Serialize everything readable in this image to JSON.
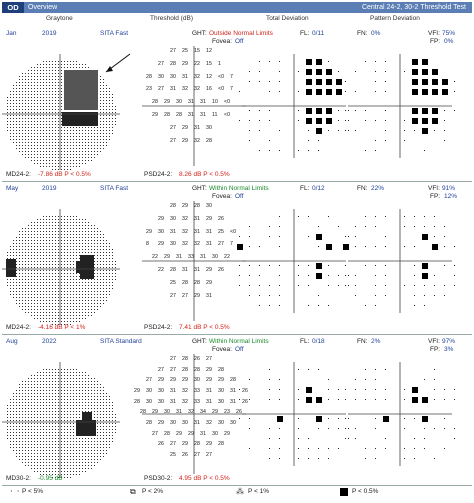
{
  "header": {
    "eye": "OD",
    "tab": "Overview",
    "test": "Central 24-2, 30-2 Threshold Test"
  },
  "columns": {
    "graytone": "Graytone",
    "threshold": "Threshold (dB)",
    "total": "Total Deviation",
    "pattern": "Pattern Deviation"
  },
  "visits": [
    {
      "month": "Jan",
      "year": "2019",
      "strategy": "SITA Fast",
      "ght_label": "GHT:",
      "ght": "Outside Normal Limits",
      "ght_status": "abnormal",
      "fovea": "Fovea:",
      "fovea_val": "Off",
      "fl_label": "FL:",
      "fl": "0/11",
      "fn_label": "FN:",
      "fn": "0%",
      "vfi_label": "VFI:",
      "vfi": "75%",
      "fp_label": "FP:",
      "fp": "0%",
      "md_label": "MD24-2:",
      "md": "-7.86 dB P < 0.5%",
      "psd_label": "PSD24-2:",
      "psd": "8.26 dB P < 0.5%",
      "thresholds": [
        [
          "27",
          "25",
          "15",
          "12"
        ],
        [
          "27",
          "28",
          "29",
          "22",
          "15",
          "1"
        ],
        [
          "28",
          "30",
          "30",
          "31",
          "32",
          "12",
          "<0",
          "7"
        ],
        [
          "23",
          "27",
          "31",
          "32",
          "32",
          "16",
          "<0",
          "7"
        ],
        [
          "28",
          "29",
          "30",
          "31",
          "31",
          "10",
          "<0"
        ],
        [
          "29",
          "28",
          "28",
          "31",
          "31",
          "11",
          "<0"
        ],
        [
          "27",
          "29",
          "31",
          "30"
        ],
        [
          "27",
          "29",
          "32",
          "28"
        ]
      ]
    },
    {
      "month": "May",
      "year": "2019",
      "strategy": "SITA Fast",
      "ght_label": "GHT:",
      "ght": "Within Normal Limits",
      "ght_status": "normal",
      "fovea": "Fovea:",
      "fovea_val": "Off",
      "fl_label": "FL:",
      "fl": "0/12",
      "fn_label": "FN:",
      "fn": "22%",
      "vfi_label": "VFI:",
      "vfi": "91%",
      "fp_label": "FP:",
      "fp": "12%",
      "md_label": "MD24-2:",
      "md": "-4.16 dB P < 1%",
      "psd_label": "PSD24-2:",
      "psd": "7.41 dB P < 0.5%",
      "thresholds": [
        [
          "28",
          "29",
          "28",
          "30"
        ],
        [
          "29",
          "30",
          "32",
          "31",
          "29",
          "26"
        ],
        [
          "29",
          "30",
          "31",
          "32",
          "31",
          "31",
          "25",
          "<0"
        ],
        [
          "8",
          "29",
          "30",
          "32",
          "32",
          "31",
          "27",
          "7"
        ],
        [
          "22",
          "29",
          "31",
          "33",
          "31",
          "30",
          "22"
        ],
        [
          "22",
          "28",
          "31",
          "31",
          "29",
          "26"
        ],
        [
          "25",
          "28",
          "28",
          "29"
        ],
        [
          "27",
          "27",
          "29",
          "31"
        ]
      ]
    },
    {
      "month": "Aug",
      "year": "2022",
      "strategy": "SITA Standard",
      "ght_label": "GHT:",
      "ght": "Within Normal Limits",
      "ght_status": "normal",
      "fovea": "Fovea:",
      "fovea_val": "Off",
      "fl_label": "FL:",
      "fl": "0/18",
      "fn_label": "FN:",
      "fn": "2%",
      "vfi_label": "VFI:",
      "vfi": "97%",
      "fp_label": "FP:",
      "fp": "3%",
      "md_label": "MD30-2:",
      "md": "-0.95 dB",
      "psd_label": "PSD30-2:",
      "psd": "4.95 dB P < 0.5%",
      "thresholds": [
        [
          "27",
          "28",
          "26",
          "27"
        ],
        [
          "27",
          "27",
          "28",
          "28",
          "29",
          "28"
        ],
        [
          "27",
          "29",
          "29",
          "29",
          "30",
          "29",
          "29",
          "28"
        ],
        [
          "29",
          "30",
          "30",
          "31",
          "32",
          "33",
          "31",
          "30",
          "31",
          "26"
        ],
        [
          "28",
          "30",
          "30",
          "31",
          "32",
          "33",
          "31",
          "30",
          "31",
          "26"
        ],
        [
          "28",
          "29",
          "30",
          "31",
          "32",
          "34",
          "29",
          "23",
          "26"
        ],
        [
          "28",
          "29",
          "30",
          "30",
          "31",
          "32",
          "30",
          "30"
        ],
        [
          "27",
          "28",
          "29",
          "29",
          "31",
          "30",
          "29"
        ],
        [
          "26",
          "27",
          "29",
          "28",
          "29",
          "28"
        ],
        [
          "25",
          "26",
          "27",
          "27"
        ]
      ]
    }
  ],
  "legend": {
    "p5": "P < 5%",
    "p2": "P < 2%",
    "p1": "P < 1%",
    "p05": "P < 0.5%"
  },
  "colors": {
    "header_bar": "#5b7fb4",
    "eye_tab": "#1f3f7a",
    "blue_text": "#1f3f9a",
    "abnormal": "#d0241c",
    "normal": "#1a8a2a"
  }
}
